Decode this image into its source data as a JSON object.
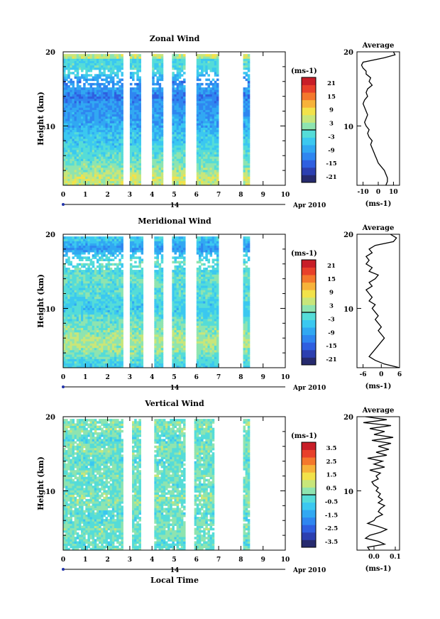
{
  "panels": [
    {
      "key": "zonal",
      "title": "Zonal Wind",
      "ylabel": "Height (km)",
      "xticks": [
        "0",
        "1",
        "2",
        "3",
        "4",
        "5",
        "6",
        "7",
        "8",
        "9",
        "10"
      ],
      "yticks": [
        "20",
        "10"
      ],
      "date_day": "14",
      "date_month": "Apr 2010",
      "cb_unit": "(ms-1)",
      "cb_ticks": [
        "21",
        "15",
        "9",
        "3",
        "-3",
        "-9",
        "-15",
        "-21"
      ],
      "avg_title": "Average",
      "avg_xticks": [
        "-10",
        "0",
        "10"
      ],
      "avg_unit": "(ms-1)",
      "avg_yticks": [
        "20",
        "10"
      ]
    },
    {
      "key": "meridional",
      "title": "Meridional Wind",
      "ylabel": "Height (km)",
      "xticks": [
        "0",
        "1",
        "2",
        "3",
        "4",
        "5",
        "6",
        "7",
        "8",
        "9",
        "10"
      ],
      "yticks": [
        "20",
        "10"
      ],
      "date_day": "14",
      "date_month": "Apr 2010",
      "cb_unit": "(ms-1)",
      "cb_ticks": [
        "21",
        "15",
        "9",
        "3",
        "-3",
        "-9",
        "-15",
        "-21"
      ],
      "avg_title": "Average",
      "avg_xticks": [
        "-6",
        "0",
        "6"
      ],
      "avg_unit": "(ms-1)",
      "avg_yticks": [
        "20",
        "10"
      ]
    },
    {
      "key": "vertical",
      "title": "Vertical Wind",
      "ylabel": "Height (km)",
      "xticks": [
        "0",
        "1",
        "2",
        "3",
        "4",
        "5",
        "6",
        "7",
        "8",
        "9",
        "10"
      ],
      "yticks": [
        "20",
        "10"
      ],
      "date_day": "14",
      "date_month": "Apr 2010",
      "cb_unit": "(ms-1)",
      "cb_ticks": [
        "3.5",
        "2.5",
        "1.5",
        "0.5",
        "-0.5",
        "-1.5",
        "-2.5",
        "-3.5"
      ],
      "avg_title": "Average",
      "avg_xticks": [
        "0.0",
        "0.1"
      ],
      "avg_unit": "(ms-1)",
      "avg_yticks": [
        "20",
        "10"
      ]
    }
  ],
  "xlabel": "Local Time",
  "colors": {
    "scale": [
      "#262a6e",
      "#2c3fb0",
      "#2f5fe0",
      "#2f86f0",
      "#31a8f2",
      "#3bc8f0",
      "#55dcd8",
      "#8ee4b0",
      "#c8e67a",
      "#f2e24a",
      "#f7b23a",
      "#f4782c",
      "#e8402a",
      "#c81e28"
    ],
    "axis": "#000000"
  },
  "chart_data": [
    {
      "type": "heatmap",
      "title": "Zonal Wind",
      "xlabel": "",
      "ylabel": "Height (km)",
      "xlim": [
        0,
        10
      ],
      "ylim": [
        2,
        20
      ],
      "units": "ms-1",
      "color_range": [
        -21,
        21
      ],
      "data_gaps_local_time": [
        [
          2.7,
          3.0
        ],
        [
          3.5,
          4.0
        ],
        [
          4.5,
          4.9
        ],
        [
          5.5,
          6.0
        ],
        [
          7.0,
          8.1
        ],
        [
          8.4,
          10.0
        ]
      ],
      "profile_height_km": [
        19,
        18,
        17,
        16,
        15,
        14,
        13,
        12,
        11,
        10,
        9,
        8,
        7,
        6,
        5,
        4,
        3,
        2
      ],
      "profile_mean": [
        -3,
        -2,
        -4,
        -10,
        -8,
        -12,
        -9,
        -9,
        -8,
        -7,
        -5,
        -4,
        -3,
        -1,
        0,
        2,
        5,
        4
      ],
      "average_profile": {
        "title": "Average",
        "xlim": [
          -14,
          14
        ],
        "height_km": [
          20,
          19.6,
          19.2,
          18.6,
          18.2,
          17.8,
          17.4,
          17,
          16.5,
          16,
          15.5,
          15,
          14.5,
          14,
          13.5,
          13,
          12.5,
          12,
          11.5,
          11,
          10.5,
          10,
          9.5,
          9,
          8.5,
          8,
          7.5,
          7,
          6.5,
          6,
          5.5,
          5,
          4.5,
          4,
          3.5,
          3,
          2.5,
          2
        ],
        "values": [
          10,
          11,
          4,
          -10,
          -11,
          -10,
          -8,
          -8,
          -5,
          -6,
          -4,
          -7,
          -8,
          -7,
          -9,
          -10,
          -9,
          -8,
          -7,
          -8,
          -9,
          -8,
          -6,
          -7,
          -6,
          -4,
          -5,
          -4,
          -3,
          -2,
          -1,
          0,
          2,
          4,
          5,
          6,
          6,
          5
        ]
      }
    },
    {
      "type": "heatmap",
      "title": "Meridional Wind",
      "xlabel": "",
      "ylabel": "Height (km)",
      "xlim": [
        0,
        10
      ],
      "ylim": [
        2,
        20
      ],
      "units": "ms-1",
      "color_range": [
        -21,
        21
      ],
      "data_gaps_local_time": [
        [
          2.7,
          3.0
        ],
        [
          3.6,
          4.1
        ],
        [
          4.5,
          4.9
        ],
        [
          5.5,
          6.0
        ],
        [
          7.0,
          8.1
        ],
        [
          8.4,
          10.0
        ]
      ],
      "profile_height_km": [
        19,
        18,
        17,
        16,
        15,
        14,
        13,
        12,
        11,
        10,
        9,
        8,
        7,
        6,
        5,
        4,
        3,
        2
      ],
      "profile_mean": [
        -6,
        -9,
        -3,
        -1,
        -2,
        0,
        -2,
        -1,
        -3,
        -4,
        -2,
        0,
        1,
        3,
        3,
        1,
        -2,
        -4
      ],
      "average_profile": {
        "title": "Average",
        "xlim": [
          -8,
          6
        ],
        "height_km": [
          20,
          19.5,
          19,
          18.5,
          18,
          17.5,
          17,
          16.5,
          16,
          15.5,
          15,
          14.5,
          14,
          13.5,
          13,
          12.5,
          12,
          11.5,
          11,
          10.5,
          10,
          9.5,
          9,
          8.5,
          8,
          7.5,
          7,
          6.5,
          6,
          5.5,
          5,
          4.5,
          4,
          3.5,
          3,
          2.5,
          2
        ],
        "values": [
          3,
          5,
          4,
          -2,
          -4,
          -3,
          -5,
          -4,
          -5,
          -3,
          -4,
          -1,
          -2,
          -4,
          -3,
          -5,
          -4,
          -3,
          -4,
          -2,
          -3,
          -2,
          -1,
          -2,
          -1,
          0,
          -1,
          0,
          1,
          0,
          -1,
          -2,
          -3,
          -4,
          -2,
          1,
          6
        ]
      }
    },
    {
      "type": "heatmap",
      "title": "Vertical Wind",
      "xlabel": "Local Time",
      "ylabel": "Height (km)",
      "xlim": [
        0,
        10
      ],
      "ylim": [
        2,
        20
      ],
      "units": "ms-1",
      "color_range": [
        -3.5,
        3.5
      ],
      "data_gaps_local_time": [
        [
          2.7,
          3.1
        ],
        [
          3.5,
          4.1
        ],
        [
          5.5,
          5.9
        ],
        [
          6.8,
          8.1
        ],
        [
          8.4,
          10.0
        ]
      ],
      "profile_height_km": [
        19,
        18,
        17,
        16,
        15,
        14,
        13,
        12,
        11,
        10,
        9,
        8,
        7,
        6,
        5,
        4,
        3,
        2
      ],
      "profile_mean": [
        0.2,
        0.1,
        -0.3,
        0.2,
        0.1,
        -0.2,
        0.0,
        0.1,
        -0.1,
        0.0,
        0.2,
        0.1,
        -0.2,
        -0.1,
        0.1,
        0.0,
        -0.2,
        0.1
      ],
      "average_profile": {
        "title": "Average",
        "xlim": [
          -0.08,
          0.12
        ],
        "height_km": [
          20,
          19.6,
          19.2,
          18.8,
          18.4,
          18,
          17.6,
          17.2,
          16.8,
          16.4,
          16,
          15.6,
          15.2,
          14.8,
          14.4,
          14,
          13.6,
          13.2,
          12.8,
          12.4,
          12,
          11.6,
          11.2,
          10.8,
          10.4,
          10,
          9.6,
          9.2,
          8.8,
          8.4,
          8,
          7.6,
          7.2,
          6.8,
          6.4,
          6,
          5.6,
          5.2,
          4.8,
          4.4,
          4,
          3.6,
          3.2,
          2.8,
          2.4,
          2
        ],
        "values": [
          -0.04,
          0.06,
          -0.05,
          0.08,
          -0.02,
          0.05,
          0.0,
          0.09,
          -0.01,
          0.08,
          0.02,
          0.07,
          0.01,
          0.06,
          -0.03,
          0.04,
          0.0,
          0.05,
          -0.02,
          0.03,
          0.01,
          0.02,
          -0.01,
          0.0,
          0.02,
          0.01,
          0.03,
          0.02,
          0.04,
          0.02,
          0.05,
          0.03,
          0.02,
          0.04,
          0.01,
          0.0,
          -0.03,
          0.02,
          0.06,
          0.03,
          -0.02,
          -0.04,
          0.02,
          0.05,
          -0.03,
          -0.02
        ]
      }
    }
  ]
}
